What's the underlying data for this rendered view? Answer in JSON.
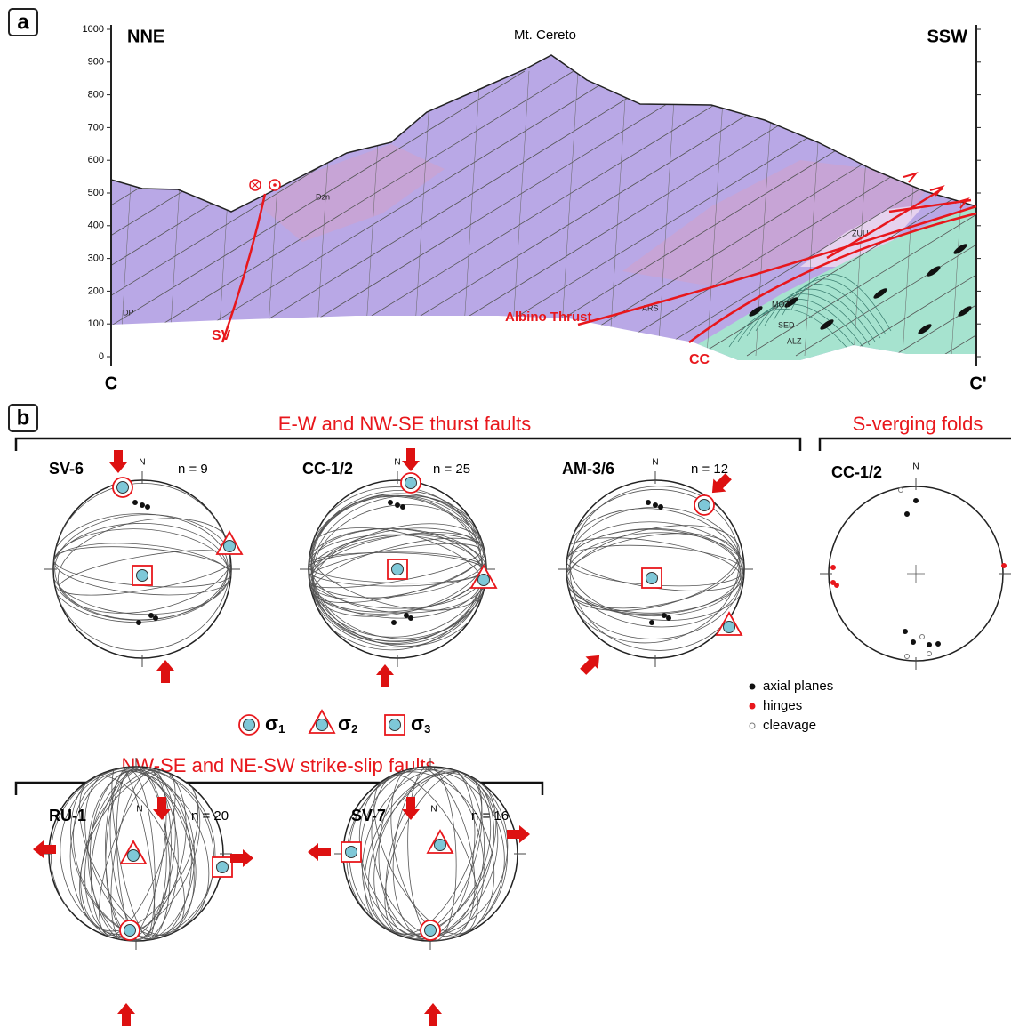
{
  "panel_a": {
    "label": "a",
    "left_end": "NNE",
    "peak": "Mt. Cereto",
    "right_end": "SSW",
    "elevation_ticks": [
      "0",
      "100",
      "200",
      "300",
      "400",
      "500",
      "600",
      "700",
      "800",
      "900",
      "1000"
    ],
    "units": {
      "dp": "DP",
      "dzn": "Dzn",
      "ars": "ARS",
      "zuu": "ZUU",
      "mot": "MOT",
      "sed": "SED",
      "alz": "ALZ"
    },
    "faults": {
      "sv": "SV",
      "albino": "Albino Thrust",
      "cc": "CC"
    },
    "section_start": "C",
    "section_end": "C'"
  },
  "panel_b": {
    "label": "b",
    "thrust_group": {
      "title": "E-W and NW-SE thurst faults",
      "nets": [
        {
          "site": "SV-6",
          "n": "n = 9",
          "north": "N"
        },
        {
          "site": "CC-1/2",
          "n": "n = 25",
          "north": "N"
        },
        {
          "site": "AM-3/6",
          "n": "n = 12",
          "north": "N"
        }
      ]
    },
    "fold_group": {
      "title": "S-verging folds",
      "net": {
        "site": "CC-1/2",
        "north": "N"
      },
      "legend": [
        "axial planes",
        "hinges",
        "cleavage"
      ]
    },
    "stress_legend": [
      {
        "symbol": "σ",
        "index": "1"
      },
      {
        "symbol": "σ",
        "index": "2"
      },
      {
        "symbol": "σ",
        "index": "3"
      }
    ],
    "strike_slip_group": {
      "title": "NW-SE and NE-SW strike-slip faults",
      "nets": [
        {
          "site": "RU-1",
          "n": "n = 20",
          "north": "N"
        },
        {
          "site": "SV-7",
          "n": "n = 16",
          "north": "N"
        }
      ]
    }
  }
}
